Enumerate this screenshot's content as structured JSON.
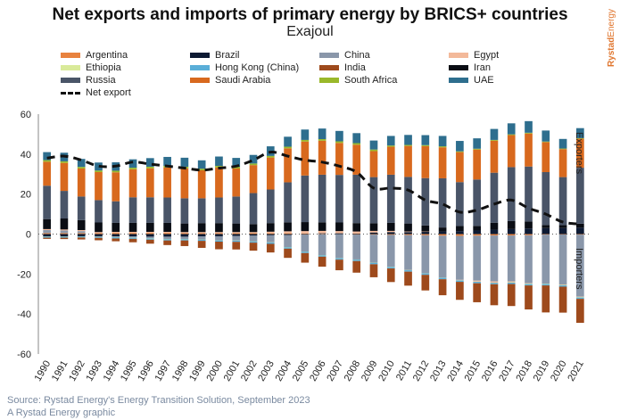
{
  "brand": {
    "word1": "Rystad",
    "word2": "Energy"
  },
  "footer": {
    "source": "Source: Rystad Energy's Energy Transition Solution, September 2023",
    "credit": "A Rystad Energy graphic"
  },
  "chart_data": {
    "type": "bar",
    "stacked": true,
    "title": "Net exports and imports of primary energy by BRICS+ countries",
    "subtitle": "Exajoul",
    "xlabel": "",
    "ylabel": "",
    "ylim": [
      -60,
      60
    ],
    "yticks": [
      60,
      40,
      20,
      0,
      -20,
      -40,
      -60
    ],
    "grid": false,
    "legend_position": "top",
    "side_labels": {
      "top": "Exporters",
      "bottom": "Importers"
    },
    "categories": [
      "1990",
      "1991",
      "1992",
      "1993",
      "1994",
      "1995",
      "1996",
      "1997",
      "1998",
      "1999",
      "2000",
      "2001",
      "2002",
      "2003",
      "2004",
      "2005",
      "2006",
      "2007",
      "2008",
      "2009",
      "2010",
      "2011",
      "2012",
      "2013",
      "2014",
      "2015",
      "2016",
      "2017",
      "2018",
      "2019",
      "2020",
      "2021"
    ],
    "series": [
      {
        "name": "Argentina",
        "color": "#e8823f",
        "values": [
          0.5,
          0.5,
          0.5,
          0.5,
          0.6,
          0.6,
          0.6,
          0.6,
          0.5,
          0.5,
          0.5,
          0.5,
          0.5,
          0.4,
          0.4,
          0.3,
          0.2,
          0,
          -0.2,
          -0.3,
          -0.4,
          -0.5,
          -0.6,
          -0.8,
          -0.9,
          -0.8,
          -0.7,
          -0.7,
          -0.6,
          -0.3,
          -0.2,
          -0.3
        ]
      },
      {
        "name": "Brazil",
        "color": "#0d1a33",
        "values": [
          -1.2,
          -1.2,
          -1.1,
          -1.1,
          -1.2,
          -1.2,
          -1.3,
          -1.3,
          -1.3,
          -1.2,
          -1.1,
          -1.0,
          -0.8,
          -0.6,
          -0.5,
          -0.2,
          0.2,
          0.4,
          0.3,
          0.8,
          1.0,
          1.0,
          1.2,
          1.3,
          1.5,
          1.8,
          2.2,
          2.5,
          2.8,
          3.0,
          3.0,
          3.2
        ]
      },
      {
        "name": "China",
        "color": "#8a97aa",
        "values": [
          1.5,
          1.3,
          1.0,
          -0.2,
          -0.3,
          -0.5,
          -0.8,
          -1.2,
          -1.2,
          -1.5,
          -2.0,
          -2.2,
          -2.8,
          -3.5,
          -6.0,
          -8.5,
          -10.5,
          -12.0,
          -12.5,
          -14.0,
          -16.0,
          -17.5,
          -19.0,
          -21.0,
          -22.0,
          -22.5,
          -23.0,
          -23.0,
          -24.0,
          -24.5,
          -25.0,
          -31.0
        ]
      },
      {
        "name": "Egypt",
        "color": "#f3b99a",
        "values": [
          0.5,
          0.5,
          0.5,
          0.5,
          0.5,
          0.5,
          0.5,
          0.5,
          0.5,
          0.5,
          0.5,
          0.5,
          0.5,
          0.8,
          1.0,
          1.2,
          1.2,
          1.1,
          1.0,
          0.8,
          0.6,
          0.3,
          0.1,
          0,
          -0.2,
          -0.5,
          -0.6,
          -0.4,
          -0.2,
          0,
          -0.2,
          -0.2
        ]
      },
      {
        "name": "Ethiopia",
        "color": "#d9ea9a",
        "values": [
          -0.1,
          -0.1,
          -0.1,
          -0.1,
          -0.1,
          -0.1,
          -0.1,
          -0.1,
          -0.1,
          -0.1,
          -0.1,
          -0.1,
          -0.1,
          -0.1,
          -0.1,
          -0.1,
          -0.1,
          -0.1,
          -0.1,
          -0.1,
          -0.1,
          -0.1,
          -0.1,
          -0.1,
          -0.1,
          -0.1,
          -0.1,
          -0.2,
          -0.2,
          -0.2,
          -0.2,
          -0.2
        ]
      },
      {
        "name": "Hong Kong (China)",
        "color": "#5aaed8",
        "values": [
          -0.5,
          -0.5,
          -0.5,
          -0.5,
          -0.6,
          -0.6,
          -0.6,
          -0.6,
          -0.6,
          -0.6,
          -0.6,
          -0.6,
          -0.6,
          -0.7,
          -0.7,
          -0.7,
          -0.7,
          -0.7,
          -0.7,
          -0.7,
          -0.7,
          -0.7,
          -0.7,
          -0.7,
          -0.7,
          -0.7,
          -0.7,
          -0.7,
          -0.7,
          -0.7,
          -0.7,
          -0.7
        ]
      },
      {
        "name": "India",
        "color": "#9e4a1c",
        "values": [
          -0.6,
          -0.7,
          -1.0,
          -1.2,
          -1.4,
          -1.7,
          -2.0,
          -2.3,
          -2.8,
          -3.5,
          -3.8,
          -3.8,
          -4.0,
          -4.3,
          -4.6,
          -4.8,
          -5.0,
          -5.3,
          -5.8,
          -6.5,
          -6.8,
          -7.0,
          -7.8,
          -8.0,
          -9.0,
          -9.5,
          -10.5,
          -11.0,
          -12.0,
          -13.5,
          -13.0,
          -12.0
        ]
      },
      {
        "name": "Iran",
        "color": "#0a0d14",
        "values": [
          5.0,
          5.5,
          5.0,
          4.8,
          4.5,
          4.5,
          4.5,
          4.5,
          4.3,
          4.5,
          4.5,
          4.3,
          4.0,
          4.3,
          4.5,
          4.5,
          4.3,
          4.3,
          4.2,
          3.8,
          4.0,
          4.0,
          3.0,
          2.0,
          2.5,
          2.3,
          3.5,
          4.0,
          3.5,
          1.5,
          1.5,
          2.0
        ]
      },
      {
        "name": "Russia",
        "color": "#4a5568",
        "values": [
          16.7,
          13.8,
          11.8,
          11.2,
          10.8,
          12.8,
          12.8,
          12.7,
          12.6,
          12.4,
          12.8,
          13.5,
          15.5,
          16.8,
          20.0,
          23.3,
          23.8,
          23.8,
          24.2,
          23.1,
          24.1,
          23.3,
          23.7,
          24.6,
          22.0,
          23.2,
          25.0,
          27.0,
          27.5,
          26.5,
          24.0,
          28.0
        ]
      },
      {
        "name": "Saudi Arabia",
        "color": "#d8691e",
        "values": [
          12.0,
          14.0,
          14.0,
          14.0,
          14.5,
          14.0,
          14.5,
          15.0,
          15.0,
          14.0,
          15.0,
          14.0,
          14.0,
          16.0,
          17.0,
          17.0,
          17.0,
          16.0,
          15.0,
          13.0,
          14.0,
          15.5,
          16.0,
          15.5,
          15.0,
          15.0,
          16.0,
          16.0,
          16.5,
          15.0,
          14.0,
          14.5
        ]
      },
      {
        "name": "South Africa",
        "color": "#9ab82a",
        "values": [
          0.8,
          0.8,
          0.8,
          0.8,
          0.8,
          0.8,
          0.8,
          0.8,
          0.8,
          0.8,
          0.8,
          0.8,
          0.8,
          0.8,
          0.8,
          0.8,
          0.8,
          0.8,
          0.8,
          0.8,
          0.6,
          0.5,
          0.5,
          0.5,
          0.4,
          0.4,
          0.4,
          0.4,
          0.4,
          0.3,
          0.3,
          0.3
        ]
      },
      {
        "name": "UAE",
        "color": "#2e6e8e",
        "values": [
          4.0,
          4.3,
          4.0,
          4.0,
          4.2,
          4.2,
          4.3,
          4.5,
          4.5,
          4.2,
          4.7,
          4.5,
          4.3,
          4.8,
          5.0,
          5.2,
          5.3,
          5.2,
          5.0,
          4.5,
          4.8,
          5.0,
          5.0,
          5.2,
          5.2,
          5.2,
          5.5,
          5.5,
          5.8,
          5.5,
          4.8,
          5.0
        ]
      }
    ],
    "net_export": {
      "name": "Net export",
      "color": "#111111",
      "values": [
        38,
        39,
        37,
        34,
        34,
        36,
        35,
        34,
        33,
        32,
        33,
        34,
        37,
        41,
        39,
        37,
        36,
        34,
        31,
        23,
        23,
        22,
        17,
        15,
        11,
        12,
        15,
        17,
        13,
        10,
        6,
        5
      ]
    }
  }
}
